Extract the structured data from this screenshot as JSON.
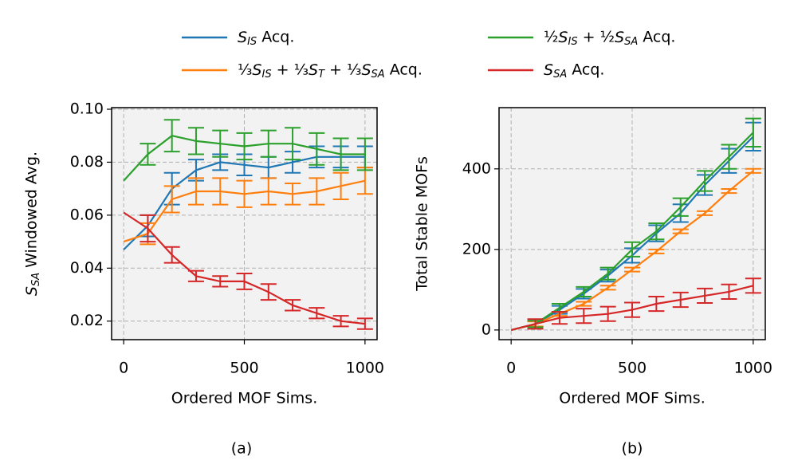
{
  "chart_data": [
    {
      "type": "line",
      "caption": "(a)",
      "xlabel": "Ordered MOF Sims.",
      "ylabel": "S_{SA} Windowed Avg.",
      "x": [
        0,
        100,
        200,
        300,
        400,
        500,
        600,
        700,
        800,
        900,
        1000
      ],
      "xlim": [
        -50,
        1050
      ],
      "xticks": [
        0,
        500,
        1000
      ],
      "ylim": [
        0.013,
        0.1006
      ],
      "yticks": [
        0.02,
        0.04,
        0.06,
        0.08,
        {
          "value": 0.1,
          "label": "0.10"
        }
      ],
      "grid": true,
      "series": [
        {
          "name": "S_{IS} Acq.",
          "color": "#1f77b4",
          "values": [
            0.047,
            0.056,
            0.07,
            0.077,
            0.08,
            0.079,
            0.078,
            0.08,
            0.082,
            0.082,
            0.082
          ],
          "errors": [
            null,
            0.004,
            0.006,
            0.004,
            0.003,
            0.004,
            0.004,
            0.004,
            0.004,
            0.004,
            0.004
          ]
        },
        {
          "name": "⅓S_{IS} + ⅓S_{T} + ⅓S_{SA} Acq.",
          "color": "#ff7f0e",
          "values": [
            0.05,
            0.053,
            0.066,
            0.069,
            0.069,
            0.068,
            0.069,
            0.068,
            0.069,
            0.071,
            0.073
          ],
          "errors": [
            null,
            0.004,
            0.005,
            0.005,
            0.005,
            0.005,
            0.005,
            0.004,
            0.005,
            0.005,
            0.005
          ]
        },
        {
          "name": "½S_{IS} + ½S_{SA} Acq.",
          "color": "#2ca02c",
          "values": [
            0.073,
            0.083,
            0.09,
            0.088,
            0.087,
            0.086,
            0.087,
            0.087,
            0.085,
            0.083,
            0.083
          ],
          "errors": [
            null,
            0.004,
            0.006,
            0.005,
            0.005,
            0.005,
            0.005,
            0.006,
            0.006,
            0.006,
            0.006
          ]
        },
        {
          "name": "S_{SA} Acq.",
          "color": "#d62728",
          "values": [
            0.061,
            0.055,
            0.045,
            0.037,
            0.035,
            0.035,
            0.031,
            0.026,
            0.023,
            0.02,
            0.019
          ],
          "errors": [
            null,
            0.005,
            0.003,
            0.002,
            0.002,
            0.003,
            0.003,
            0.002,
            0.002,
            0.002,
            0.002
          ]
        }
      ]
    },
    {
      "type": "line",
      "caption": "(b)",
      "xlabel": "Ordered MOF Sims.",
      "ylabel": "Total Stable MOFs",
      "x": [
        0,
        100,
        200,
        300,
        400,
        500,
        600,
        700,
        800,
        900,
        1000
      ],
      "xlim": [
        -50,
        1050
      ],
      "xticks": [
        0,
        500,
        1000
      ],
      "ylim": [
        -24,
        552
      ],
      "yticks": [
        0,
        200,
        400
      ],
      "grid": true,
      "series": [
        {
          "color": "#1f77b4",
          "values": [
            0,
            15,
            50,
            90,
            135,
            185,
            240,
            290,
            360,
            420,
            480
          ],
          "errors": [
            null,
            8,
            10,
            12,
            15,
            18,
            20,
            22,
            25,
            30,
            35
          ]
        },
        {
          "color": "#ff7f0e",
          "values": [
            0,
            15,
            40,
            65,
            105,
            150,
            195,
            245,
            290,
            345,
            395
          ],
          "errors": [
            null,
            6,
            5,
            5,
            5,
            5,
            5,
            5,
            5,
            5,
            5
          ]
        },
        {
          "color": "#2ca02c",
          "values": [
            0,
            15,
            55,
            95,
            140,
            200,
            245,
            305,
            370,
            430,
            490
          ],
          "errors": [
            null,
            8,
            10,
            12,
            15,
            18,
            20,
            22,
            25,
            30,
            35
          ]
        },
        {
          "color": "#d62728",
          "values": [
            0,
            15,
            30,
            35,
            40,
            50,
            65,
            75,
            85,
            95,
            110
          ],
          "errors": [
            null,
            12,
            15,
            18,
            18,
            18,
            18,
            18,
            18,
            18,
            18
          ]
        }
      ]
    }
  ]
}
